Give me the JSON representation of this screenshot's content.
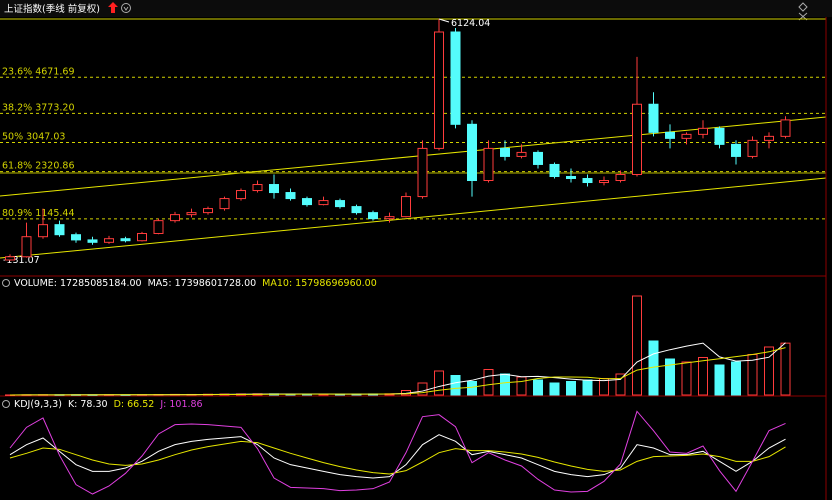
{
  "chart_data": [
    {
      "type": "candlestick",
      "title": "上证指数(季线 前复权)",
      "open": [
        120,
        200,
        700,
        1000,
        750,
        620,
        560,
        650,
        600,
        780,
        1100,
        1250,
        1300,
        1400,
        1650,
        1850,
        2000,
        1800,
        1650,
        1500,
        1600,
        1450,
        1300,
        1150,
        1200,
        1700,
        2900,
        5800,
        3500,
        2100,
        2900,
        2700,
        2800,
        2500,
        2200,
        2150,
        2050,
        2100,
        2250,
        4000,
        3300,
        3150,
        3250,
        3400,
        3000,
        2700,
        3100,
        3200
      ],
      "high": [
        260,
        1050,
        1400,
        1100,
        800,
        700,
        720,
        700,
        820,
        1150,
        1320,
        1400,
        1450,
        1700,
        1900,
        2100,
        2250,
        1900,
        1700,
        1700,
        1650,
        1500,
        1350,
        1300,
        1800,
        3100,
        6124.04,
        5900,
        3600,
        3100,
        3100,
        3000,
        2850,
        2550,
        2400,
        2250,
        2200,
        2350,
        5180,
        4300,
        3500,
        3300,
        3600,
        3450,
        3100,
        3200,
        3300,
        3700
      ],
      "low": [
        100,
        180,
        650,
        700,
        550,
        500,
        520,
        560,
        580,
        760,
        1050,
        1180,
        1250,
        1350,
        1600,
        1800,
        1650,
        1600,
        1450,
        1480,
        1400,
        1250,
        1100,
        1050,
        1180,
        1650,
        2850,
        3400,
        1700,
        2050,
        2600,
        2650,
        2400,
        2150,
        2050,
        1950,
        1980,
        2050,
        2200,
        3200,
        2900,
        3000,
        3150,
        2900,
        2500,
        2650,
        2900,
        3150
      ],
      "close": [
        200,
        700,
        1000,
        750,
        620,
        560,
        650,
        600,
        780,
        1100,
        1250,
        1300,
        1400,
        1650,
        1850,
        2000,
        1800,
        1650,
        1500,
        1600,
        1450,
        1300,
        1150,
        1200,
        1700,
        2900,
        5800,
        3500,
        2100,
        2900,
        2700,
        2800,
        2500,
        2200,
        2150,
        2050,
        2100,
        2250,
        4000,
        3300,
        3150,
        3250,
        3400,
        3000,
        2700,
        3100,
        3200,
        3610
      ],
      "up_color": "#ff3c3c",
      "down_color": "#54fcfc",
      "ylim": [
        -30,
        6124.04
      ],
      "levels": [
        {
          "label": "23.6% 4671.69",
          "value": 4671.69
        },
        {
          "label": "38.2% 3773.20",
          "value": 3773.2
        },
        {
          "label": "50% 3047.03",
          "value": 3047.03
        },
        {
          "label": "61.8% 2320.86",
          "value": 2320.86
        },
        {
          "label": "80.9% 1145.44",
          "value": 1145.44
        }
      ],
      "level_color": "#d2d200",
      "annotations": [
        {
          "text": "6124.04",
          "value": 6124.04,
          "index": 26
        }
      ],
      "low_label": "-131.07"
    },
    {
      "type": "bar",
      "title": "VOLUME: 17285085184.00",
      "values": [
        20000000,
        60000000,
        90000000,
        80000000,
        70000000,
        60000000,
        80000000,
        70000000,
        100000000,
        150000000,
        200000000,
        180000000,
        250000000,
        300000000,
        350000000,
        400000000,
        380000000,
        300000000,
        250000000,
        280000000,
        250000000,
        300000000,
        350000000,
        400000000,
        1500000000,
        4000000000,
        8000000000,
        6500000000,
        4500000000,
        8500000000,
        7000000000,
        6000000000,
        5000000000,
        4000000000,
        4500000000,
        5000000000,
        5500000000,
        7000000000,
        33000000000,
        18000000000,
        12000000000,
        11000000000,
        12500000000,
        10000000000,
        11000000000,
        13500000000,
        16000000000,
        17285085184
      ],
      "series": [
        {
          "name": "MA5: 17398601728.00",
          "color": "#ffffff",
          "values": [
            20000000.0,
            40000000.0,
            60000000.0,
            60000000.0,
            70000000.0,
            70000000.0,
            70000000.0,
            70000000.0,
            80000000.0,
            90000000.0,
            120000000.0,
            140000000.0,
            180000000.0,
            220000000.0,
            260000000.0,
            300000000.0,
            330000000.0,
            340000000.0,
            340000000.0,
            320000000.0,
            290000000.0,
            280000000.0,
            290000000.0,
            320000000.0,
            560000000.0,
            1310000000.0,
            2850000000.0,
            4080000000.0,
            4900000000.0,
            6300000000.0,
            6900000000.0,
            6100000000.0,
            6200000000.0,
            5800000000.0,
            5300000000.0,
            4900000000.0,
            4800000000.0,
            5200000000.0,
            11000000000.0,
            13700000000.0,
            15100000000.0,
            16300000000.0,
            17300000000.0,
            12700000000.0,
            11300000000.0,
            11600000000.0,
            12600000000.0,
            17398601728
          ]
        },
        {
          "name": "MA10: 15798696960.00",
          "color": "#e6e600",
          "values": [
            20000000.0,
            30000000.0,
            40000000.0,
            50000000.0,
            60000000.0,
            60000000.0,
            70000000.0,
            70000000.0,
            70000000.0,
            80000000.0,
            90000000.0,
            100000000.0,
            120000000.0,
            150000000.0,
            170000000.0,
            200000000.0,
            230000000.0,
            260000000.0,
            280000000.0,
            290000000.0,
            290000000.0,
            300000000.0,
            310000000.0,
            320000000.0,
            430000000.0,
            790000000.0,
            1580000000.0,
            2200000000.0,
            2600000000.0,
            3400000000.0,
            4100000000.0,
            4500000000.0,
            5500000000.0,
            6000000000.0,
            6000000000.0,
            5900000000.0,
            5400000000.0,
            5500000000.0,
            8300000000.0,
            9300000000.0,
            10000000000.0,
            10700000000.0,
            11400000000.0,
            12100000000.0,
            12800000000.0,
            13500000000.0,
            14400000000.0,
            15798696960
          ]
        }
      ],
      "ylim": [
        0,
        35000000000
      ]
    },
    {
      "type": "line",
      "title": "KDJ(9,3,3)",
      "series": [
        {
          "name": "K: 78.30",
          "color": "#ffffff",
          "values": [
            55,
            70,
            80,
            60,
            40,
            30,
            30,
            35,
            45,
            60,
            70,
            75,
            78,
            80,
            82,
            70,
            50,
            40,
            35,
            30,
            25,
            22,
            20,
            22,
            40,
            70,
            85,
            75,
            55,
            60,
            55,
            50,
            40,
            30,
            25,
            22,
            25,
            35,
            70,
            65,
            55,
            55,
            60,
            45,
            30,
            45,
            65,
            78.3
          ]
        },
        {
          "name": "D: 66.52",
          "color": "#e6e600",
          "values": [
            50,
            57,
            65,
            63,
            55,
            47,
            41,
            39,
            41,
            47,
            55,
            62,
            67,
            71,
            75,
            73,
            65,
            57,
            50,
            43,
            37,
            32,
            28,
            26,
            31,
            44,
            58,
            64,
            61,
            61,
            59,
            56,
            51,
            44,
            38,
            33,
            30,
            32,
            45,
            52,
            53,
            54,
            56,
            52,
            45,
            45,
            52,
            66.52
          ]
        },
        {
          "name": "J: 101.86",
          "color": "#e040e0",
          "values": [
            65,
            96,
            110,
            54,
            10,
            -4,
            8,
            27,
            53,
            86,
            100,
            101,
            100,
            98,
            96,
            64,
            20,
            6,
            5,
            4,
            1,
            2,
            4,
            14,
            58,
            112,
            115,
            97,
            43,
            58,
            47,
            38,
            18,
            2,
            -1,
            0,
            15,
            41,
            120,
            91,
            59,
            57,
            68,
            31,
            0,
            45,
            91,
            101.86
          ]
        }
      ],
      "ylim": [
        -10,
        125
      ]
    }
  ]
}
